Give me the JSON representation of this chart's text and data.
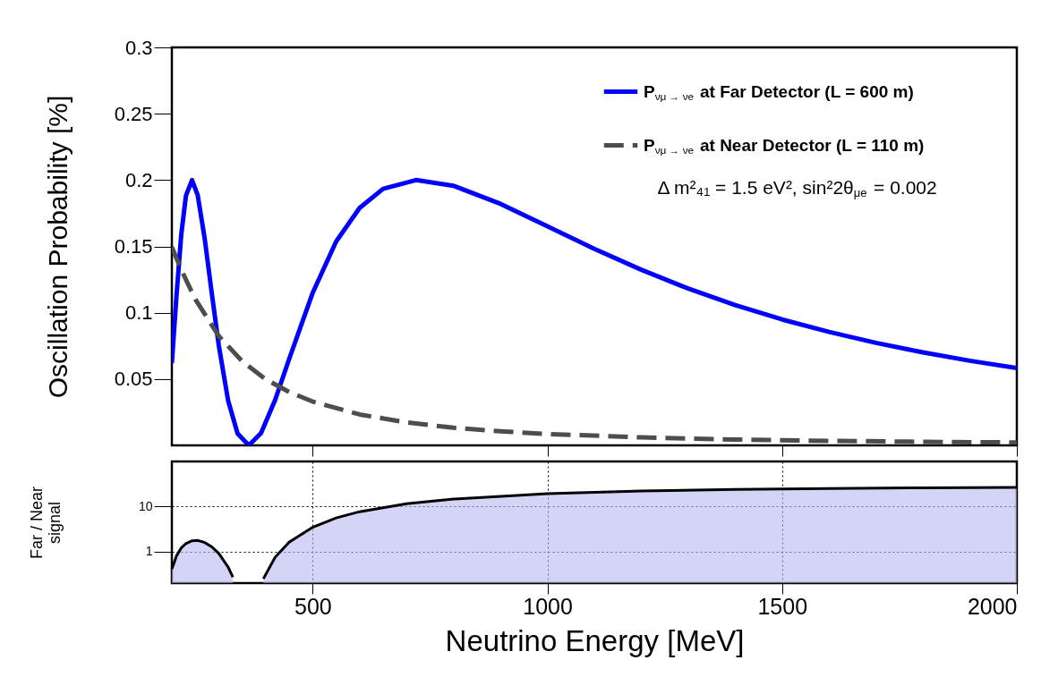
{
  "chart_data": [
    {
      "type": "line",
      "ylabel": "Oscillation Probability [%]",
      "xlim": [
        200,
        2000
      ],
      "xticks": [
        500,
        1000,
        1500,
        2000
      ],
      "ylim": [
        0,
        0.3
      ],
      "yticks": [
        0.05,
        0.1,
        0.15,
        0.2,
        0.25,
        0.3
      ],
      "tick_labels": "y",
      "grid": false,
      "legend": "top right",
      "annotations": [
        "Δ m²₄₁ = 1.5 eV²,   sin²2θ$_{μe}$ = 0.002"
      ],
      "series": [
        {
          "name": "P$_{νμ → νe}$ at Far Detector (L = 600 m)",
          "color": "#0000ff",
          "line_style": "solid",
          "x": [
            200,
            210,
            220,
            230,
            243,
            255,
            270,
            285,
            300,
            320,
            340,
            364,
            390,
            420,
            450,
            500,
            550,
            600,
            650,
            720,
            800,
            900,
            1000,
            1100,
            1200,
            1300,
            1400,
            1500,
            1600,
            1700,
            1800,
            1900,
            2000
          ],
          "values": [
            0.062,
            0.1135,
            0.1588,
            0.1882,
            0.2,
            0.1887,
            0.1557,
            0.1148,
            0.0753,
            0.0335,
            0.0089,
            0.0,
            0.0093,
            0.0342,
            0.0652,
            0.115,
            0.1537,
            0.179,
            0.1934,
            0.2,
            0.1957,
            0.1821,
            0.1651,
            0.1482,
            0.1324,
            0.1182,
            0.1058,
            0.0949,
            0.0855,
            0.0773,
            0.0701,
            0.0638,
            0.0583
          ]
        },
        {
          "name": "P$_{νμ → νe}$ at Near Detector (L = 110 m)",
          "color": "#4d4d4d",
          "line_style": "dashed",
          "x": [
            200,
            220,
            250,
            300,
            350,
            400,
            450,
            500,
            600,
            700,
            800,
            900,
            1000,
            1200,
            1400,
            1600,
            1800,
            2000
          ],
          "values": [
            0.1495,
            0.1324,
            0.1101,
            0.0824,
            0.0633,
            0.0498,
            0.0402,
            0.033,
            0.0233,
            0.0173,
            0.0133,
            0.0106,
            0.0086,
            0.006,
            0.0044,
            0.0034,
            0.0027,
            0.0022
          ]
        }
      ]
    },
    {
      "type": "area",
      "xlabel": "Neutrino Energy [MeV]",
      "ylabel": "Far / Near signal",
      "xlim": [
        200,
        2000
      ],
      "xticks": [
        500,
        1000,
        1500,
        2000
      ],
      "ylim": [
        0.2,
        100
      ],
      "yticks": [
        1,
        10
      ],
      "log": "y",
      "grid": true,
      "x": [
        200,
        210,
        220,
        230,
        243,
        255,
        270,
        285,
        300,
        320,
        330,
        364,
        395,
        420,
        450,
        500,
        550,
        600,
        700,
        800,
        1000,
        1200,
        1400,
        1600,
        1800,
        2000
      ],
      "series": [
        {
          "color": "#b8b8f2",
          "values": [
            0.41,
            0.81,
            1.2,
            1.51,
            1.74,
            1.77,
            1.59,
            1.28,
            0.91,
            0.45,
            0.27,
            null,
            0.25,
            0.75,
            1.62,
            3.48,
            5.59,
            7.68,
            11.5,
            14.7,
            19.2,
            22.1,
            24.0,
            25.1,
            26.0,
            26.5
          ]
        }
      ]
    }
  ]
}
